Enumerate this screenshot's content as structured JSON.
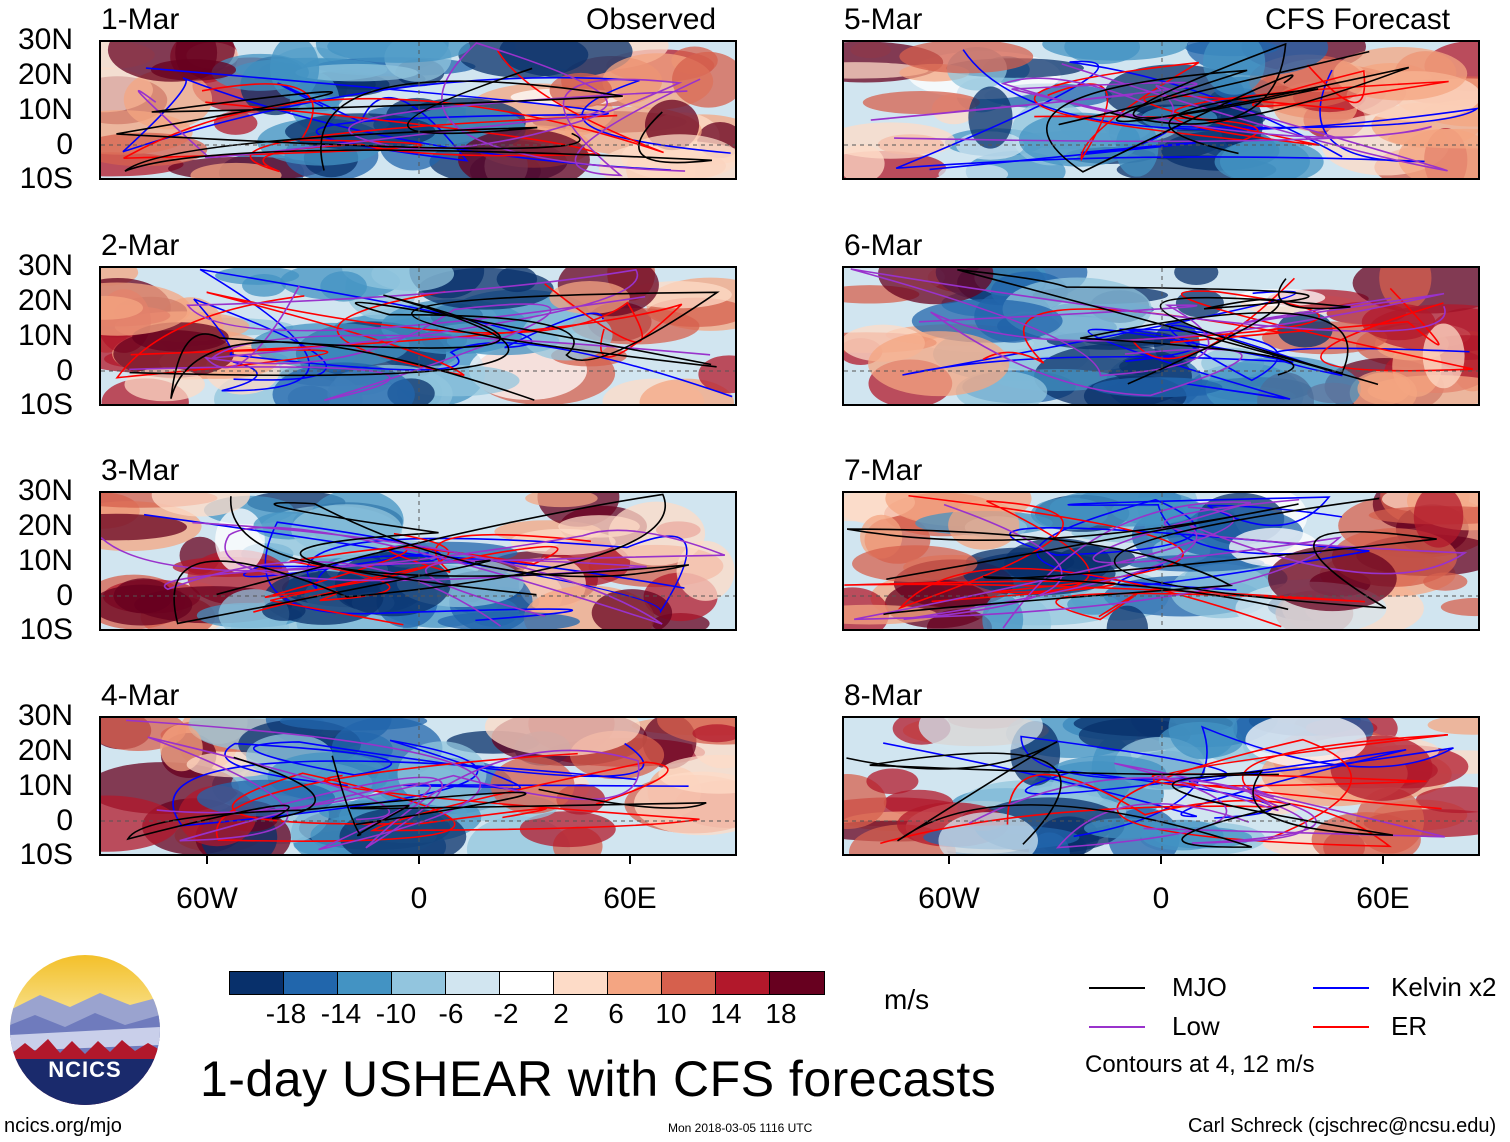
{
  "panels": [
    {
      "date": "1-Mar",
      "note": "Observed"
    },
    {
      "date": "2-Mar",
      "note": ""
    },
    {
      "date": "3-Mar",
      "note": ""
    },
    {
      "date": "4-Mar",
      "note": ""
    },
    {
      "date": "5-Mar",
      "note": "CFS Forecast"
    },
    {
      "date": "6-Mar",
      "note": ""
    },
    {
      "date": "7-Mar",
      "note": ""
    },
    {
      "date": "8-Mar",
      "note": ""
    }
  ],
  "lat_labels": [
    "30N",
    "20N",
    "10N",
    "0",
    "10S"
  ],
  "lon_labels": [
    "60W",
    "0",
    "60E"
  ],
  "colorbar": {
    "colors": [
      "#08306b",
      "#2166ac",
      "#4393c3",
      "#92c5de",
      "#d1e5f0",
      "#ffffff",
      "#fddbc7",
      "#f4a582",
      "#d6604d",
      "#b2182b",
      "#67001f"
    ],
    "labels": [
      "-18",
      "-14",
      "-10",
      "-6",
      "-2",
      "2",
      "6",
      "10",
      "14",
      "18"
    ],
    "units": "m/s"
  },
  "legend": {
    "items": [
      {
        "name": "MJO",
        "color": "#000000"
      },
      {
        "name": "Kelvin x2",
        "color": "#0000ff"
      },
      {
        "name": "Low",
        "color": "#9932cc"
      },
      {
        "name": "ER",
        "color": "#ff0000"
      }
    ],
    "contours_note": "Contours at 4, 12 m/s"
  },
  "title": "1-day USHEAR with CFS forecasts",
  "logo_text": "NCICS",
  "footer": {
    "left": "ncics.org/mjo",
    "center": "Mon 2018-03-05 1116 UTC",
    "right": "Carl Schreck (cjschrec@ncsu.edu)"
  }
}
